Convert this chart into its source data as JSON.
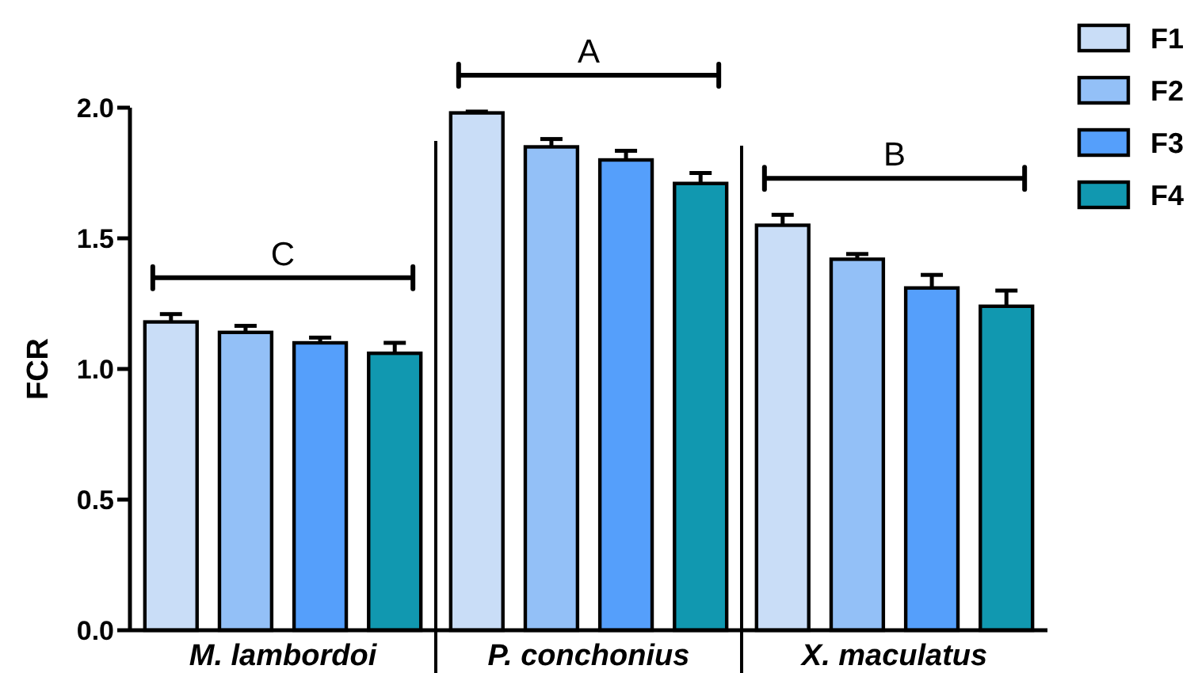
{
  "chart_data": {
    "type": "bar",
    "ylabel": "FCR",
    "categories": [
      "M. lambordoi",
      "P. conchonius",
      "X. maculatus"
    ],
    "series": [
      {
        "name": "F1",
        "color": "#c9ddf7",
        "values": [
          1.18,
          1.98,
          1.55
        ],
        "errors": [
          0.03,
          0.005,
          0.04
        ]
      },
      {
        "name": "F2",
        "color": "#93c0f7",
        "values": [
          1.14,
          1.85,
          1.42
        ],
        "errors": [
          0.025,
          0.03,
          0.02
        ]
      },
      {
        "name": "F3",
        "color": "#559ffb",
        "values": [
          1.1,
          1.8,
          1.31
        ],
        "errors": [
          0.02,
          0.035,
          0.05
        ]
      },
      {
        "name": "F4",
        "color": "#1198b0",
        "values": [
          1.06,
          1.71,
          1.24
        ],
        "errors": [
          0.04,
          0.04,
          0.06
        ]
      }
    ],
    "ylim": [
      0,
      2
    ],
    "yticks": [
      {
        "value": 0,
        "label": "0.0"
      },
      {
        "value": 0.5,
        "label": "0.5"
      },
      {
        "value": 1,
        "label": "1.0"
      },
      {
        "value": 1.5,
        "label": "1.5"
      },
      {
        "value": 2,
        "label": "2.0"
      }
    ],
    "annotations": [
      "C",
      "A",
      "B"
    ],
    "legend": "top right"
  }
}
